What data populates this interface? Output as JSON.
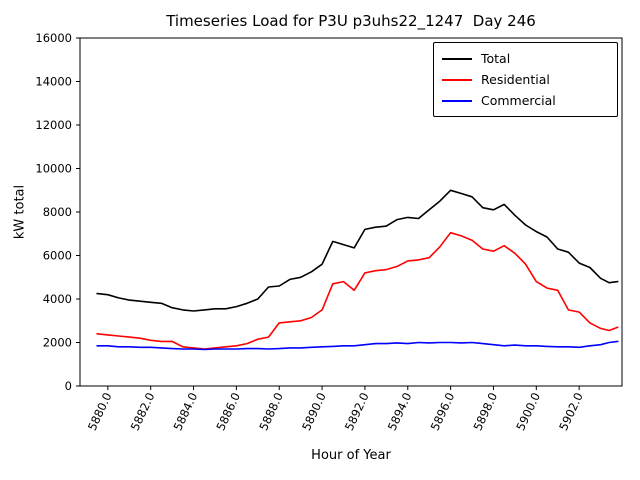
{
  "chart_data": {
    "type": "line",
    "title": "Timeseries Load for P3U p3uhs22_1247  Day 246",
    "xlabel": "Hour of Year",
    "ylabel": "kW total",
    "xlim": [
      5878.7,
      5904.0
    ],
    "ylim": [
      0,
      16000
    ],
    "xticks": [
      5880,
      5882,
      5884,
      5886,
      5888,
      5890,
      5892,
      5894,
      5896,
      5898,
      5900,
      5902
    ],
    "xtick_labels": [
      "5880.0",
      "5882.0",
      "5884.0",
      "5886.0",
      "5888.0",
      "5890.0",
      "5892.0",
      "5894.0",
      "5896.0",
      "5898.0",
      "5900.0",
      "5902.0"
    ],
    "yticks": [
      0,
      2000,
      4000,
      6000,
      8000,
      10000,
      12000,
      14000,
      16000
    ],
    "grid": false,
    "legend_position": "upper right",
    "x": [
      5879.5,
      5880.0,
      5880.5,
      5881.0,
      5881.5,
      5882.0,
      5882.5,
      5883.0,
      5883.5,
      5884.0,
      5884.5,
      5885.0,
      5885.5,
      5886.0,
      5886.5,
      5887.0,
      5887.5,
      5888.0,
      5888.5,
      5889.0,
      5889.5,
      5890.0,
      5890.5,
      5891.0,
      5891.5,
      5892.0,
      5892.5,
      5893.0,
      5893.5,
      5894.0,
      5894.5,
      5895.0,
      5895.5,
      5896.0,
      5896.5,
      5897.0,
      5897.5,
      5898.0,
      5898.5,
      5899.0,
      5899.5,
      5900.0,
      5900.5,
      5901.0,
      5901.5,
      5902.0,
      5902.5,
      5903.0,
      5903.4,
      5903.8
    ],
    "series": [
      {
        "name": "Total",
        "color": "#000000",
        "values": [
          4250,
          4200,
          4050,
          3950,
          3900,
          3850,
          3800,
          3600,
          3500,
          3450,
          3500,
          3550,
          3550,
          3650,
          3800,
          4000,
          4550,
          4600,
          4900,
          5000,
          5250,
          5600,
          6650,
          6500,
          6350,
          7200,
          7300,
          7350,
          7650,
          7750,
          7700,
          8100,
          8500,
          9000,
          8850,
          8700,
          8200,
          8100,
          8350,
          7850,
          7400,
          7100,
          6850,
          6300,
          6150,
          5650,
          5450,
          4950,
          4750,
          4800
        ]
      },
      {
        "name": "Residential",
        "color": "#ff0000",
        "values": [
          2400,
          2350,
          2300,
          2250,
          2200,
          2100,
          2050,
          2050,
          1800,
          1750,
          1700,
          1750,
          1800,
          1850,
          1950,
          2150,
          2250,
          2900,
          2950,
          3000,
          3150,
          3500,
          4700,
          4800,
          4400,
          5200,
          5300,
          5350,
          5500,
          5750,
          5800,
          5900,
          6400,
          7050,
          6900,
          6700,
          6300,
          6200,
          6450,
          6100,
          5600,
          4800,
          4500,
          4400,
          3500,
          3400,
          2900,
          2650,
          2550,
          2700
        ]
      },
      {
        "name": "Commercial",
        "color": "#0000ff",
        "values": [
          1850,
          1850,
          1800,
          1800,
          1780,
          1780,
          1750,
          1720,
          1700,
          1700,
          1680,
          1700,
          1700,
          1700,
          1720,
          1720,
          1700,
          1720,
          1750,
          1750,
          1780,
          1800,
          1820,
          1850,
          1850,
          1900,
          1950,
          1950,
          1980,
          1950,
          2000,
          1980,
          2000,
          2000,
          1980,
          2000,
          1950,
          1900,
          1850,
          1880,
          1850,
          1850,
          1820,
          1800,
          1800,
          1780,
          1850,
          1900,
          2000,
          2050
        ]
      }
    ]
  }
}
